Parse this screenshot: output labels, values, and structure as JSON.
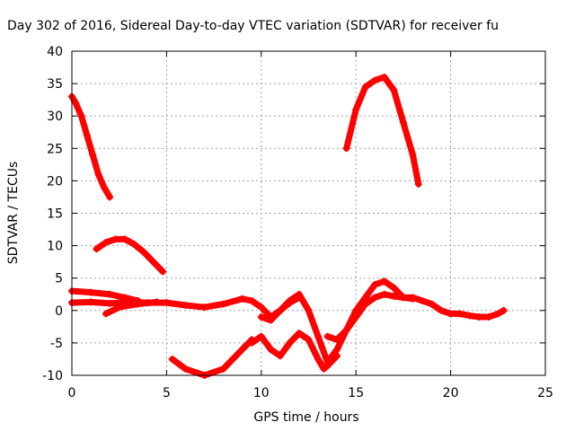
{
  "chart_data": {
    "type": "scatter",
    "title": "Day 302 of 2016, Sidereal Day-to-day VTEC variation (SDTVAR) for receiver fu",
    "xlabel": "GPS time / hours",
    "ylabel": "SDTVAR / TECUs",
    "xlim": [
      0,
      25
    ],
    "ylim": [
      -10,
      40
    ],
    "xticks": [
      0,
      5,
      10,
      15,
      20,
      25
    ],
    "yticks": [
      -10,
      -5,
      0,
      5,
      10,
      15,
      20,
      25,
      30,
      35,
      40
    ],
    "grid": true,
    "marker": "+",
    "color": "#ff0000",
    "series": [
      {
        "x": [
          0.0,
          0.2,
          0.5,
          0.8,
          1.1,
          1.4,
          1.7,
          2.0
        ],
        "y": [
          33,
          32,
          30,
          27,
          24,
          21,
          19,
          17.5
        ]
      },
      {
        "x": [
          1.3,
          1.8,
          2.3,
          2.8,
          3.3,
          3.8,
          4.3,
          4.8
        ],
        "y": [
          9.5,
          10.5,
          11,
          11,
          10.2,
          9,
          7.5,
          6
        ]
      },
      {
        "x": [
          0.0,
          1.0,
          2.0,
          2.8,
          3.5
        ],
        "y": [
          3,
          2.8,
          2.5,
          2,
          1.5
        ]
      },
      {
        "x": [
          0.0,
          1.0,
          2.0,
          3.0,
          4.0,
          5.0,
          6.0,
          7.0,
          8.0,
          9.0,
          9.5,
          10.0,
          10.5,
          11.0,
          11.5,
          12.0
        ],
        "y": [
          1.2,
          1.3,
          1.1,
          1.3,
          1.2,
          1.2,
          0.8,
          0.5,
          1,
          1.8,
          1.5,
          0.5,
          -1,
          0,
          1.2,
          2
        ]
      },
      {
        "x": [
          1.8,
          2.5,
          3.5,
          4.5
        ],
        "y": [
          -0.5,
          0.5,
          1,
          1.3
        ]
      },
      {
        "x": [
          10.0,
          10.5,
          11.0,
          11.5,
          12.0,
          12.5,
          13.0,
          13.5,
          14.0,
          14.5,
          15.0,
          15.5,
          16.0,
          16.5,
          17.0,
          17.5,
          18.0,
          18.5,
          19.0,
          19.5,
          20.0,
          20.5,
          21.0,
          21.5,
          22.0,
          22.5,
          22.8
        ],
        "y": [
          -1,
          -1.5,
          0,
          1.5,
          2.5,
          0,
          -4,
          -8,
          -6,
          -3,
          0,
          2,
          4,
          4.5,
          3.5,
          2,
          2,
          1.5,
          1,
          0,
          -0.5,
          -0.5,
          -0.8,
          -1,
          -1,
          -0.5,
          0
        ]
      },
      {
        "x": [
          13.5,
          14.0,
          14.5,
          15.0,
          15.5,
          16.0,
          16.5,
          17.0,
          17.5,
          18.0
        ],
        "y": [
          -4,
          -4.5,
          -3,
          -1,
          1,
          2,
          2.5,
          2.2,
          2,
          1.8
        ]
      },
      {
        "x": [
          5.3,
          6.0,
          7.0,
          8.0,
          9.0,
          9.5
        ],
        "y": [
          -7.5,
          -9,
          -10,
          -9,
          -6,
          -4.5
        ]
      },
      {
        "x": [
          9.5,
          10.0,
          10.5,
          11.0,
          11.5,
          12.0,
          12.5,
          13.0,
          13.3,
          13.5,
          14.0
        ],
        "y": [
          -5,
          -4,
          -6,
          -7,
          -5,
          -3.5,
          -4.5,
          -7.5,
          -9,
          -8.5,
          -7
        ]
      },
      {
        "x": [
          14.5,
          15.0,
          15.5,
          16.0,
          16.5,
          17.0,
          17.5,
          18.0,
          18.3
        ],
        "y": [
          25,
          31,
          34.5,
          35.5,
          36,
          34,
          29,
          24,
          19.5
        ]
      }
    ]
  }
}
